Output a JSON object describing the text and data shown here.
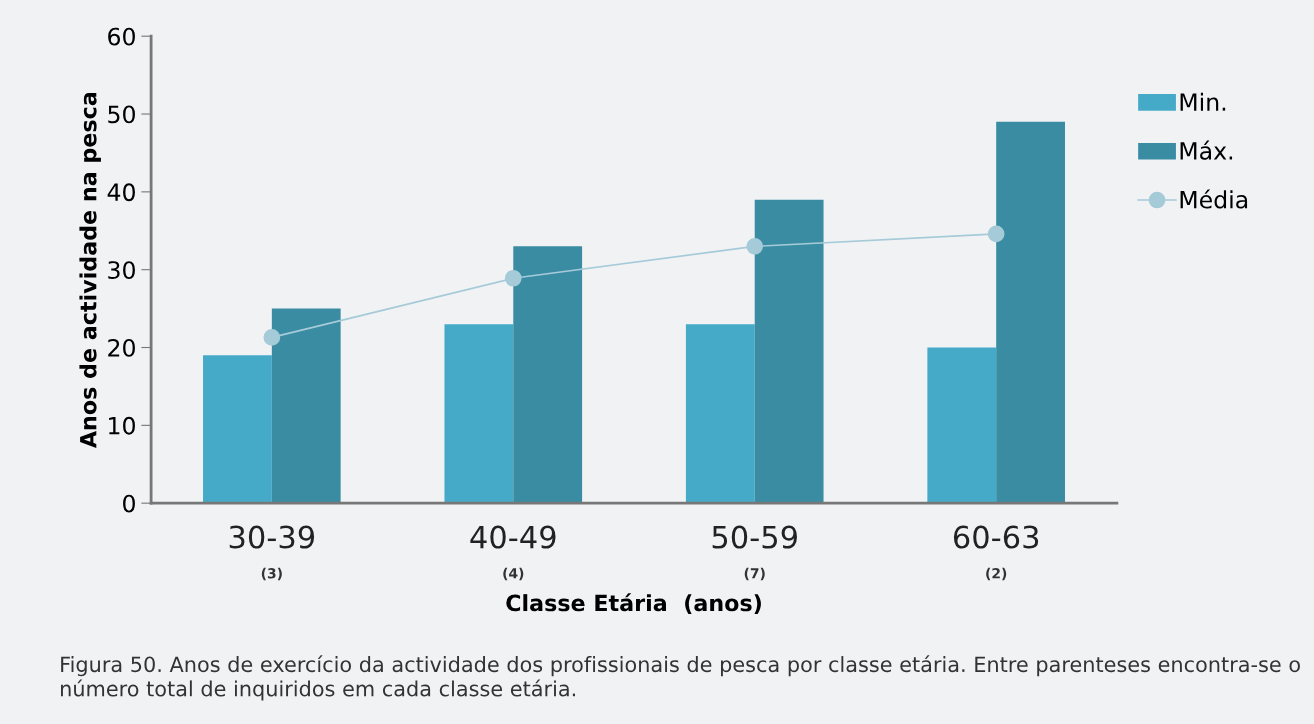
{
  "chart_data": {
    "type": "bar",
    "xlabel": "Classe Etária  (anos)",
    "ylabel": "Anos de actividade na pesca",
    "categories": [
      "30-39\n(3)",
      "40-49\n(4)",
      "50-59\n(7)",
      "60-63\n(2)"
    ],
    "series": [
      {
        "name": "Min.",
        "color": "#44aac8",
        "values": [
          19,
          23,
          23,
          20
        ]
      },
      {
        "name": "Máx.",
        "color": "#3a8ca3",
        "values": [
          25,
          33,
          39,
          49
        ]
      },
      {
        "name": "Média",
        "type": "line",
        "color": "#a5cad8",
        "values": [
          21.3,
          28.9,
          33,
          34.6
        ]
      }
    ],
    "ylim": [
      0,
      60
    ],
    "yticks": [
      0,
      10,
      20,
      30,
      40,
      50,
      60
    ],
    "marker": "circle",
    "grid": false,
    "legend": "right",
    "annotations": [
      "Figura 50. Anos de exercício da actividade dos profissionais de pesca por classe etária. Entre parenteses encontra-se o número total de inquiridos em cada classe etária."
    ]
  }
}
